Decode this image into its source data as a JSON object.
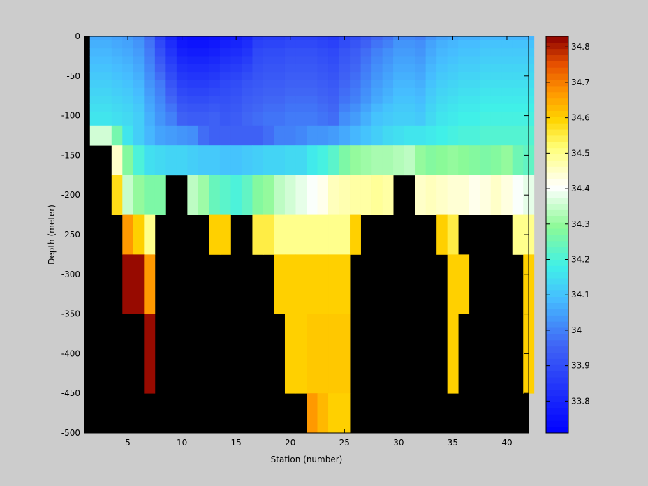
{
  "chart_data": {
    "type": "heatmap",
    "title": "",
    "xlabel": "Station (number)",
    "ylabel": "Depth (meter)",
    "xlim": [
      1,
      42
    ],
    "ylim": [
      -500,
      0
    ],
    "x_ticks": [
      5,
      10,
      15,
      20,
      25,
      30,
      35,
      40
    ],
    "x_tick_labels": [
      "5",
      "10",
      "15",
      "20",
      "25",
      "30",
      "35",
      "40"
    ],
    "y_ticks": [
      0,
      -50,
      -100,
      -150,
      -200,
      -250,
      -300,
      -350,
      -400,
      -450,
      -500
    ],
    "y_tick_labels": [
      "0",
      "-50",
      "-100",
      "-150",
      "-200",
      "-250",
      "-300",
      "-350",
      "-400",
      "-450",
      "-500"
    ],
    "colorbar": {
      "range": [
        33.71,
        34.83
      ],
      "ticks": [
        33.8,
        33.9,
        34.0,
        34.1,
        34.2,
        34.3,
        34.4,
        34.5,
        34.6,
        34.7,
        34.8
      ],
      "tick_labels": [
        "33.8",
        "33.9",
        "34",
        "34.1",
        "34.2",
        "34.3",
        "34.4",
        "34.5",
        "34.6",
        "34.7",
        "34.8"
      ],
      "colormap": "jet-with-white-center"
    },
    "missing_color": "#000000",
    "depths": [
      0,
      -10,
      -20,
      -30,
      -40,
      -50,
      -60,
      -70,
      -80,
      -90,
      -100,
      -125,
      -150,
      -200,
      -250,
      -300,
      -400,
      -500
    ],
    "stations": [
      2,
      3,
      4,
      5,
      6,
      7,
      8,
      9,
      10,
      11,
      12,
      13,
      14,
      15,
      16,
      17,
      18,
      19,
      20,
      21,
      22,
      23,
      24,
      25,
      26,
      27,
      28,
      29,
      30,
      31,
      32,
      33,
      34,
      35,
      36,
      37,
      38,
      39,
      40,
      41,
      42
    ],
    "values": [
      [
        34.06,
        34.06,
        34.05,
        34.04,
        34.02,
        33.97,
        33.87,
        33.8,
        33.75,
        33.74,
        33.74,
        33.75,
        33.77,
        33.78,
        33.8,
        33.85,
        33.86,
        33.86,
        33.87,
        33.87,
        33.87,
        33.86,
        33.85,
        33.88,
        33.9,
        33.93,
        33.96,
        33.98,
        34.01,
        34.01,
        34.0,
        34.03,
        34.05,
        34.06,
        34.07,
        34.07,
        34.08,
        34.08,
        34.08,
        34.08,
        34.08
      ],
      [
        34.07,
        34.07,
        34.06,
        34.05,
        34.03,
        33.98,
        33.89,
        33.82,
        33.77,
        33.76,
        33.76,
        33.77,
        33.79,
        33.8,
        33.82,
        33.87,
        33.88,
        33.88,
        33.89,
        33.89,
        33.89,
        33.88,
        33.87,
        33.9,
        33.92,
        33.95,
        33.98,
        34.0,
        34.03,
        34.03,
        34.02,
        34.05,
        34.07,
        34.08,
        34.09,
        34.09,
        34.1,
        34.1,
        34.1,
        34.1,
        34.1
      ],
      [
        34.08,
        34.08,
        34.07,
        34.06,
        34.04,
        33.99,
        33.91,
        33.84,
        33.79,
        33.78,
        33.78,
        33.79,
        33.81,
        33.82,
        33.84,
        33.89,
        33.9,
        33.9,
        33.91,
        33.91,
        33.91,
        33.9,
        33.89,
        33.92,
        33.94,
        33.97,
        34.0,
        34.02,
        34.04,
        34.04,
        34.03,
        34.06,
        34.08,
        34.09,
        34.1,
        34.1,
        34.11,
        34.11,
        34.11,
        34.11,
        34.11
      ],
      [
        34.09,
        34.09,
        34.08,
        34.07,
        34.05,
        34.0,
        33.93,
        33.86,
        33.81,
        33.8,
        33.8,
        33.81,
        33.83,
        33.84,
        33.86,
        33.9,
        33.91,
        33.91,
        33.92,
        33.92,
        33.92,
        33.91,
        33.9,
        33.93,
        33.95,
        33.98,
        34.01,
        34.03,
        34.05,
        34.05,
        34.04,
        34.07,
        34.09,
        34.1,
        34.11,
        34.11,
        34.12,
        34.12,
        34.12,
        34.12,
        34.12
      ],
      [
        34.1,
        34.1,
        34.09,
        34.08,
        34.06,
        34.01,
        33.95,
        33.88,
        33.83,
        33.82,
        33.82,
        33.83,
        33.85,
        33.86,
        33.88,
        33.91,
        33.92,
        33.92,
        33.93,
        33.93,
        33.93,
        33.92,
        33.91,
        33.94,
        33.96,
        33.99,
        34.02,
        34.04,
        34.06,
        34.06,
        34.05,
        34.08,
        34.1,
        34.11,
        34.12,
        34.12,
        34.13,
        34.13,
        34.13,
        34.13,
        34.13
      ],
      [
        34.11,
        34.11,
        34.1,
        34.09,
        34.07,
        34.02,
        33.97,
        33.9,
        33.85,
        33.84,
        33.84,
        33.85,
        33.87,
        33.88,
        33.9,
        33.92,
        33.93,
        33.93,
        33.94,
        33.94,
        33.94,
        33.93,
        33.92,
        33.95,
        33.97,
        34.0,
        34.03,
        34.05,
        34.07,
        34.07,
        34.06,
        34.09,
        34.11,
        34.12,
        34.13,
        34.13,
        34.14,
        34.14,
        34.14,
        34.14,
        34.14
      ],
      [
        34.12,
        34.12,
        34.11,
        34.1,
        34.08,
        34.03,
        33.99,
        33.92,
        33.87,
        33.86,
        33.86,
        33.87,
        33.89,
        33.9,
        33.92,
        33.93,
        33.94,
        33.94,
        33.95,
        33.95,
        33.95,
        33.94,
        33.93,
        33.96,
        33.98,
        34.01,
        34.04,
        34.06,
        34.08,
        34.08,
        34.07,
        34.1,
        34.12,
        34.13,
        34.14,
        34.14,
        34.15,
        34.15,
        34.15,
        34.15,
        34.15
      ],
      [
        34.13,
        34.13,
        34.12,
        34.11,
        34.09,
        34.04,
        34.0,
        33.94,
        33.89,
        33.88,
        33.88,
        33.89,
        33.9,
        33.91,
        33.93,
        33.94,
        33.95,
        33.95,
        33.96,
        33.96,
        33.96,
        33.95,
        33.94,
        33.97,
        33.99,
        34.02,
        34.05,
        34.07,
        34.09,
        34.09,
        34.08,
        34.11,
        34.13,
        34.14,
        34.15,
        34.15,
        34.16,
        34.16,
        34.16,
        34.16,
        34.16
      ],
      [
        34.14,
        34.14,
        34.13,
        34.12,
        34.1,
        34.05,
        34.01,
        33.96,
        33.91,
        33.9,
        33.9,
        33.91,
        33.91,
        33.92,
        33.94,
        33.95,
        33.96,
        33.96,
        33.97,
        33.97,
        33.97,
        33.96,
        33.95,
        33.98,
        34.0,
        34.03,
        34.06,
        34.08,
        34.1,
        34.1,
        34.09,
        34.12,
        34.14,
        34.15,
        34.16,
        34.16,
        34.17,
        34.17,
        34.17,
        34.17,
        34.17
      ],
      [
        34.15,
        34.15,
        34.14,
        34.13,
        34.11,
        34.06,
        34.02,
        33.98,
        33.93,
        33.92,
        33.92,
        33.93,
        33.92,
        33.93,
        33.95,
        33.96,
        33.97,
        33.97,
        33.98,
        33.98,
        33.98,
        33.97,
        33.96,
        34.0,
        34.02,
        34.05,
        34.08,
        34.1,
        34.11,
        34.11,
        34.1,
        34.13,
        34.15,
        34.16,
        34.17,
        34.17,
        34.18,
        34.18,
        34.18,
        34.18,
        34.18
      ],
      [
        34.16,
        34.16,
        34.15,
        34.14,
        34.12,
        34.07,
        34.03,
        34.0,
        33.95,
        33.94,
        33.94,
        33.95,
        33.93,
        33.94,
        33.96,
        33.97,
        33.98,
        33.98,
        33.99,
        33.99,
        33.99,
        33.98,
        33.97,
        34.02,
        34.04,
        34.07,
        34.1,
        34.11,
        34.12,
        34.12,
        34.11,
        34.14,
        34.16,
        34.17,
        34.18,
        34.18,
        34.19,
        34.19,
        34.19,
        34.19,
        34.19
      ],
      [
        34.36,
        34.36,
        34.26,
        34.16,
        34.12,
        34.08,
        34.05,
        34.04,
        34.03,
        34.02,
        33.97,
        33.95,
        33.95,
        33.95,
        33.95,
        33.95,
        33.97,
        34.0,
        34.0,
        34.01,
        34.03,
        34.03,
        34.04,
        34.06,
        34.08,
        34.1,
        34.12,
        34.14,
        34.15,
        34.16,
        34.16,
        34.17,
        34.18,
        34.19,
        34.2,
        34.2,
        34.21,
        34.21,
        34.21,
        34.21,
        34.21
      ],
      [
        null,
        null,
        34.45,
        34.28,
        34.2,
        34.15,
        34.14,
        34.13,
        34.13,
        34.12,
        34.11,
        34.11,
        34.1,
        34.1,
        34.11,
        34.12,
        34.13,
        34.13,
        34.14,
        34.14,
        34.17,
        34.19,
        34.22,
        34.27,
        34.3,
        34.31,
        34.32,
        34.32,
        34.33,
        34.34,
        34.3,
        34.28,
        34.29,
        34.3,
        34.29,
        34.28,
        34.27,
        34.28,
        34.3,
        34.25,
        34.23
      ],
      [
        null,
        null,
        34.58,
        34.35,
        34.3,
        34.27,
        34.27,
        null,
        null,
        34.34,
        34.31,
        34.24,
        34.22,
        34.2,
        34.23,
        34.28,
        34.3,
        34.34,
        34.36,
        34.38,
        34.4,
        34.42,
        34.46,
        34.47,
        34.48,
        34.48,
        34.49,
        34.48,
        null,
        null,
        34.45,
        34.46,
        34.45,
        34.44,
        34.44,
        34.42,
        34.43,
        34.45,
        34.43,
        34.4,
        34.38
      ],
      [
        null,
        null,
        null,
        34.67,
        34.6,
        34.5,
        null,
        null,
        null,
        null,
        null,
        34.6,
        34.6,
        null,
        null,
        34.55,
        34.55,
        34.5,
        34.5,
        34.5,
        34.5,
        34.5,
        34.5,
        34.5,
        34.6,
        null,
        null,
        null,
        null,
        null,
        null,
        null,
        34.6,
        34.55,
        null,
        null,
        null,
        null,
        null,
        34.5,
        34.5
      ],
      [
        null,
        null,
        null,
        34.82,
        34.82,
        34.67,
        null,
        null,
        null,
        null,
        null,
        null,
        null,
        null,
        null,
        null,
        null,
        34.6,
        34.6,
        34.6,
        34.6,
        34.6,
        34.6,
        34.6,
        null,
        null,
        null,
        null,
        null,
        null,
        null,
        null,
        null,
        34.6,
        34.6,
        null,
        null,
        null,
        null,
        null,
        34.6
      ],
      [
        null,
        null,
        null,
        null,
        null,
        34.82,
        null,
        null,
        null,
        null,
        null,
        null,
        null,
        null,
        null,
        null,
        null,
        null,
        34.6,
        34.6,
        34.61,
        34.61,
        34.61,
        34.61,
        null,
        null,
        null,
        null,
        null,
        null,
        null,
        null,
        null,
        34.6,
        null,
        null,
        null,
        null,
        null,
        null,
        34.6
      ],
      [
        null,
        null,
        null,
        null,
        null,
        null,
        null,
        null,
        null,
        null,
        null,
        null,
        null,
        null,
        null,
        null,
        null,
        null,
        null,
        null,
        34.67,
        34.63,
        34.6,
        34.6,
        null,
        null,
        null,
        null,
        null,
        null,
        null,
        null,
        null,
        null,
        null,
        null,
        null,
        null,
        null,
        null,
        null
      ]
    ]
  }
}
